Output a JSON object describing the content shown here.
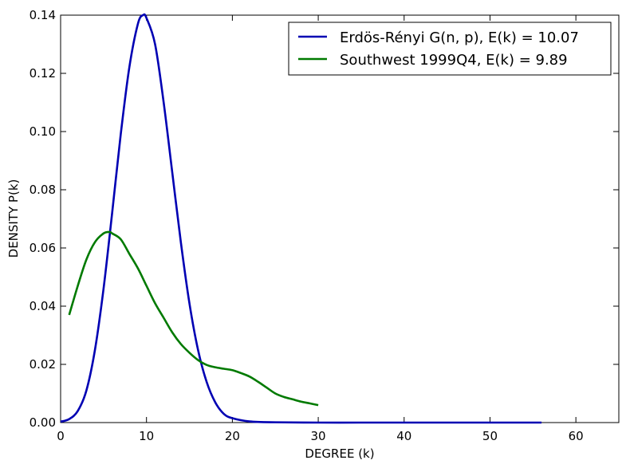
{
  "chart_data": {
    "type": "line",
    "xlabel": "DEGREE (k)",
    "ylabel": "DENSITY P(k)",
    "xlim": [
      0,
      65
    ],
    "ylim": [
      0,
      0.14
    ],
    "xticks": [
      0,
      10,
      20,
      30,
      40,
      50,
      60
    ],
    "yticks": [
      0.0,
      0.02,
      0.04,
      0.06,
      0.08,
      0.1,
      0.12,
      0.14
    ],
    "xtick_labels": [
      "0",
      "10",
      "20",
      "30",
      "40",
      "50",
      "60"
    ],
    "ytick_labels": [
      "0.00",
      "0.02",
      "0.04",
      "0.06",
      "0.08",
      "0.10",
      "0.12",
      "0.14"
    ],
    "grid": false,
    "legend_position": "top-right",
    "series": [
      {
        "name": "Erdös-Rényi G(n, p), E(k) = 10.07",
        "color": "#0000b3",
        "x": [
          0,
          1,
          2,
          3,
          4,
          5,
          6,
          7,
          8,
          9,
          9.6,
          10,
          11,
          12,
          13,
          14,
          15,
          16,
          17,
          18,
          19,
          20,
          22,
          25,
          30,
          35,
          40,
          45,
          50,
          56
        ],
        "y": [
          0.0003,
          0.0012,
          0.004,
          0.011,
          0.025,
          0.046,
          0.072,
          0.099,
          0.122,
          0.137,
          0.14,
          0.139,
          0.13,
          0.11,
          0.086,
          0.062,
          0.041,
          0.025,
          0.014,
          0.007,
          0.003,
          0.0015,
          0.0004,
          0.0001,
          0,
          0,
          0,
          0,
          0,
          0
        ]
      },
      {
        "name": "Southwest 1999Q4, E(k) = 9.89",
        "color": "#007a00",
        "x": [
          1,
          2,
          3,
          4,
          5,
          5.7,
          6,
          7,
          8,
          9,
          10,
          11,
          12,
          13,
          14,
          15,
          16,
          17,
          18,
          19,
          20,
          21,
          22,
          23,
          24,
          25,
          26,
          27,
          28,
          29,
          30
        ],
        "y": [
          0.037,
          0.047,
          0.056,
          0.062,
          0.065,
          0.0655,
          0.065,
          0.063,
          0.058,
          0.053,
          0.047,
          0.041,
          0.036,
          0.031,
          0.027,
          0.024,
          0.0215,
          0.0198,
          0.019,
          0.0185,
          0.018,
          0.017,
          0.0158,
          0.014,
          0.012,
          0.01,
          0.0088,
          0.008,
          0.0072,
          0.0066,
          0.006
        ]
      }
    ]
  }
}
